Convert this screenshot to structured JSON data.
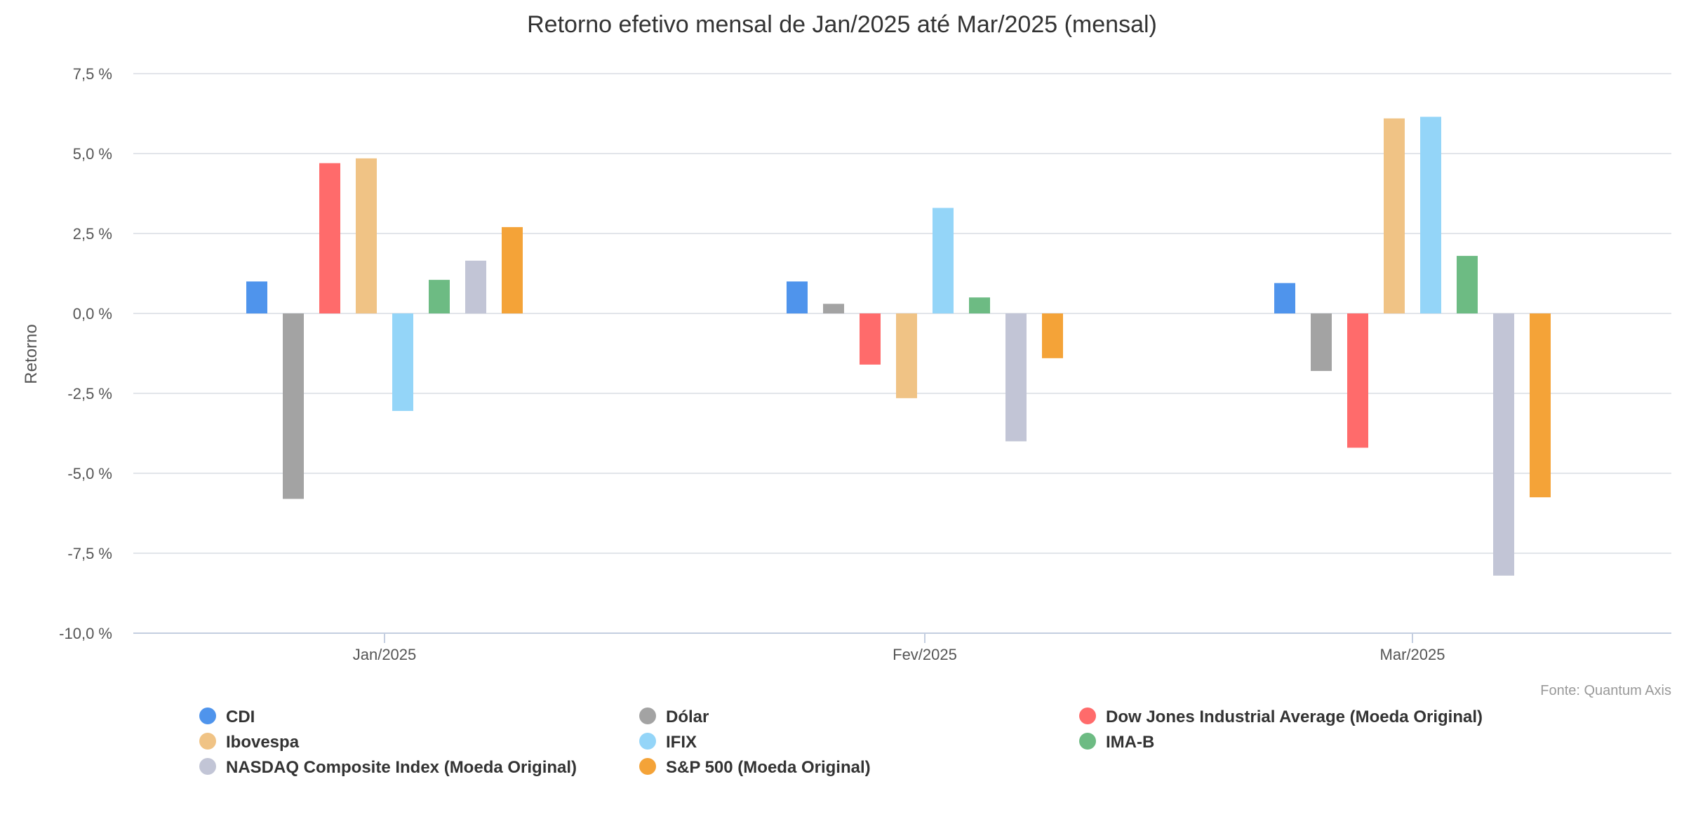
{
  "chart_data": {
    "type": "bar",
    "title": "Retorno efetivo mensal de Jan/2025 até Mar/2025 (mensal)",
    "xlabel": "",
    "ylabel": "Retorno",
    "ylim": [
      -10.0,
      7.5
    ],
    "yticks": [
      7.5,
      5.0,
      2.5,
      0.0,
      -2.5,
      -5.0,
      -7.5,
      -10.0
    ],
    "ytick_labels": [
      "7,5 %",
      "5,0 %",
      "2,5 %",
      "0,0 %",
      "-2,5 %",
      "-5,0 %",
      "-7,5 %",
      "-10,0 %"
    ],
    "categories": [
      "Jan/2025",
      "Fev/2025",
      "Mar/2025"
    ],
    "grid": true,
    "legend_position": "bottom",
    "source": "Fonte: Quantum Axis",
    "series": [
      {
        "name": "CDI",
        "color": "#4f94ec",
        "values": [
          1.0,
          1.0,
          0.95
        ]
      },
      {
        "name": "Dólar",
        "color": "#a3a3a3",
        "values": [
          -5.8,
          0.3,
          -1.8
        ]
      },
      {
        "name": "Dow Jones Industrial Average (Moeda Original)",
        "color": "#ff6b6b",
        "values": [
          4.7,
          -1.6,
          -4.2
        ]
      },
      {
        "name": "Ibovespa",
        "color": "#f0c385",
        "values": [
          4.85,
          -2.65,
          6.1
        ]
      },
      {
        "name": "IFIX",
        "color": "#94d5f8",
        "values": [
          -3.05,
          3.3,
          6.15
        ]
      },
      {
        "name": "IMA-B",
        "color": "#6dbb83",
        "values": [
          1.05,
          0.5,
          1.8
        ]
      },
      {
        "name": "NASDAQ Composite Index (Moeda Original)",
        "color": "#c2c5d6",
        "values": [
          1.65,
          -4.0,
          -8.2
        ]
      },
      {
        "name": "S&P 500 (Moeda Original)",
        "color": "#f4a338",
        "values": [
          2.7,
          -1.4,
          -5.75
        ]
      }
    ],
    "series_by_category": [
      [
        "CDI",
        "Dólar",
        "Dow Jones Industrial Average (Moeda Original)",
        "Ibovespa",
        "IFIX",
        "IMA-B",
        "NASDAQ Composite Index (Moeda Original)",
        "S&P 500 (Moeda Original)"
      ],
      [
        "CDI",
        "Dólar",
        "Dow Jones Industrial Average (Moeda Original)",
        "Ibovespa",
        "IFIX",
        "IMA-B",
        "NASDAQ Composite Index (Moeda Original)",
        "S&P 500 (Moeda Original)"
      ],
      [
        "CDI",
        "Dólar",
        "Dow Jones Industrial Average (Moeda Original)",
        "Ibovespa",
        "IFIX",
        "IMA-B",
        "NASDAQ Composite Index (Moeda Original)",
        "S&P 500 (Moeda Original)"
      ]
    ]
  }
}
